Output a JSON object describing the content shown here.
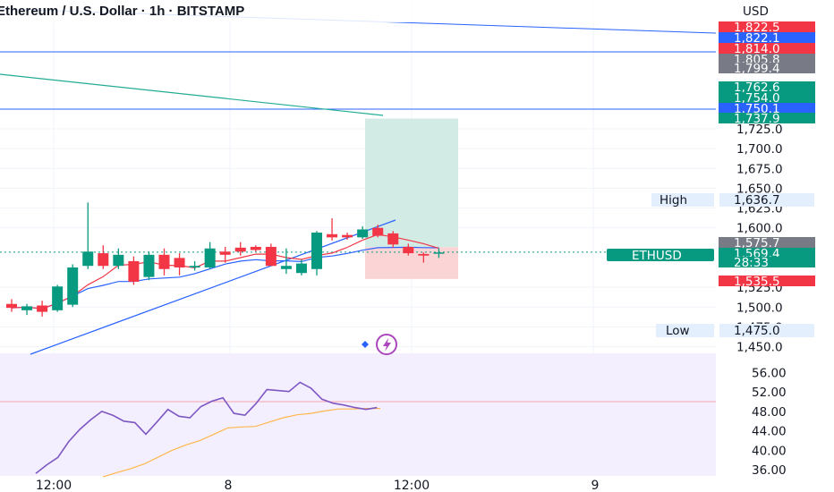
{
  "header": {
    "title": "Ethereum / U.S. Dollar · 1h · BITSTAMP",
    "currency": "USD"
  },
  "colors": {
    "up": "#089981",
    "down": "#f23645",
    "blue_tag": "#2962ff",
    "gray_tag": "#787b86",
    "trendline": "#2962ff",
    "ma_red": "#f23645",
    "ma_blue": "#2962ff",
    "teal_line": "#22ab94",
    "rsi_line": "#7e57c2",
    "rsi_ma": "#ffb74d",
    "rsi_bg": "#f3efff",
    "target_zone": "#d2ebe5",
    "stop_zone": "#fbd4d6"
  },
  "chart_data": [
    {
      "type": "candlestick",
      "symbol": "ETHUSD",
      "title": "Ethereum / U.S. Dollar · 1h · BITSTAMP",
      "x_labels": [
        "12:00",
        "8",
        "12:00",
        "9"
      ],
      "y_ticks": [
        1725.0,
        1700.0,
        1675.0,
        1650.0,
        1625.0,
        1600.0,
        1525.0,
        1500.0,
        1475.0,
        1450.0
      ],
      "candles": [
        {
          "o": 1504,
          "h": 1510,
          "l": 1494,
          "c": 1499
        },
        {
          "o": 1496,
          "h": 1504,
          "l": 1490,
          "c": 1501
        },
        {
          "o": 1502,
          "h": 1508,
          "l": 1488,
          "c": 1494
        },
        {
          "o": 1496,
          "h": 1528,
          "l": 1494,
          "c": 1526
        },
        {
          "o": 1503,
          "h": 1554,
          "l": 1500,
          "c": 1550
        },
        {
          "o": 1552,
          "h": 1632,
          "l": 1548,
          "c": 1570
        },
        {
          "o": 1568,
          "h": 1578,
          "l": 1548,
          "c": 1552
        },
        {
          "o": 1552,
          "h": 1574,
          "l": 1548,
          "c": 1566
        },
        {
          "o": 1558,
          "h": 1564,
          "l": 1528,
          "c": 1532
        },
        {
          "o": 1538,
          "h": 1570,
          "l": 1534,
          "c": 1566
        },
        {
          "o": 1566,
          "h": 1574,
          "l": 1540,
          "c": 1548
        },
        {
          "o": 1562,
          "h": 1568,
          "l": 1540,
          "c": 1550
        },
        {
          "o": 1550,
          "h": 1558,
          "l": 1546,
          "c": 1552
        },
        {
          "o": 1550,
          "h": 1582,
          "l": 1548,
          "c": 1574
        },
        {
          "o": 1570,
          "h": 1576,
          "l": 1556,
          "c": 1566
        },
        {
          "o": 1575,
          "h": 1582,
          "l": 1565,
          "c": 1570
        },
        {
          "o": 1576,
          "h": 1578,
          "l": 1570,
          "c": 1572
        },
        {
          "o": 1576,
          "h": 1580,
          "l": 1552,
          "c": 1552
        },
        {
          "o": 1548,
          "h": 1574,
          "l": 1542,
          "c": 1552
        },
        {
          "o": 1543,
          "h": 1560,
          "l": 1540,
          "c": 1555
        },
        {
          "o": 1548,
          "h": 1596,
          "l": 1540,
          "c": 1594
        },
        {
          "o": 1592,
          "h": 1612,
          "l": 1584,
          "c": 1588
        },
        {
          "o": 1591,
          "h": 1594,
          "l": 1585,
          "c": 1588
        },
        {
          "o": 1588,
          "h": 1602,
          "l": 1586,
          "c": 1598
        },
        {
          "o": 1600,
          "h": 1604,
          "l": 1588,
          "c": 1590
        },
        {
          "o": 1593,
          "h": 1596,
          "l": 1575,
          "c": 1579
        },
        {
          "o": 1576,
          "h": 1580,
          "l": 1565,
          "c": 1568
        },
        {
          "o": 1567,
          "h": 1569,
          "l": 1556,
          "c": 1565
        },
        {
          "o": 1568,
          "h": 1574,
          "l": 1562,
          "c": 1569
        }
      ],
      "price_labels": [
        {
          "text": "1,822.5",
          "color": "#f23645"
        },
        {
          "text": "1,822.1",
          "color": "#2962ff"
        },
        {
          "text": "1,814.0",
          "color": "#f23645"
        },
        {
          "text": "1,805.8",
          "color": "#787b86"
        },
        {
          "text": "1,799.4",
          "color": "#787b86"
        },
        {
          "text": "1,762.6",
          "color": "#089981"
        },
        {
          "text": "1,754.0",
          "color": "#089981"
        },
        {
          "text": "1,750.1",
          "color": "#2962ff"
        },
        {
          "text": "1,737.9",
          "color": "#089981"
        },
        {
          "text": "1,575.7",
          "color": "#787b86"
        },
        {
          "text": "1,569.4",
          "color": "#089981"
        },
        {
          "text": "28:33",
          "color": "#089981"
        },
        {
          "text": "1,535.5",
          "color": "#f23645"
        }
      ],
      "high": {
        "label": "High",
        "value": "1,636.7"
      },
      "low": {
        "label": "Low",
        "value": "1,475.0"
      },
      "symbol_tag": "ETHUSD",
      "trade_setup": {
        "entry": 1575.7,
        "target": 1737.9,
        "stop": 1535.5
      }
    },
    {
      "type": "line",
      "name": "RSI",
      "y_ticks": [
        56.0,
        52.0,
        48.0,
        44.0,
        40.0,
        36.0
      ],
      "ylim": [
        35,
        58
      ],
      "rsi": [
        35.2,
        37.0,
        38.5,
        41.8,
        44.3,
        46.3,
        48.0,
        47.2,
        46.0,
        45.7,
        43.3,
        45.8,
        48.4,
        47.0,
        46.7,
        49.0,
        50.1,
        50.8,
        47.6,
        47.2,
        49.6,
        52.5,
        52.3,
        52.1,
        54.0,
        52.8,
        50.5,
        49.7,
        49.3,
        48.8,
        48.4,
        48.8
      ],
      "rsi_ma": [
        34.5,
        35.4,
        36.2,
        37.2,
        38.6,
        40.0,
        41.1,
        42.0,
        43.3,
        44.6,
        44.8,
        44.9,
        45.8,
        46.7,
        47.3,
        47.6,
        48.1,
        48.5,
        48.5,
        48.6,
        48.6
      ]
    }
  ]
}
